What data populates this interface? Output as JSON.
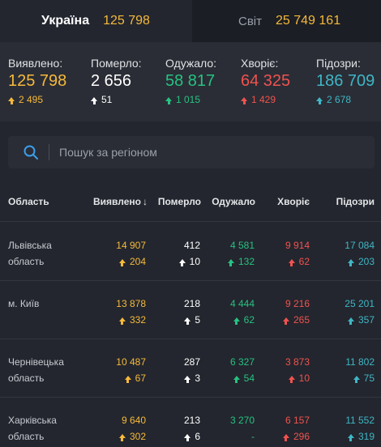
{
  "tabs": {
    "ukraine": {
      "label": "Україна",
      "count": "125 798"
    },
    "world": {
      "label": "Світ",
      "count": "25 749 161"
    }
  },
  "summary": {
    "confirmed": {
      "label": "Виявлено:",
      "value": "125 798",
      "delta": "2 495"
    },
    "deaths": {
      "label": "Померло:",
      "value": "2 656",
      "delta": "51"
    },
    "recovered": {
      "label": "Одужало:",
      "value": "58 817",
      "delta": "1 015"
    },
    "sick": {
      "label": "Хворіє:",
      "value": "64 325",
      "delta": "1 429"
    },
    "suspected": {
      "label": "Підозри:",
      "value": "186 709",
      "delta": "2 678"
    }
  },
  "search": {
    "placeholder": "Пошук за регіоном"
  },
  "table": {
    "headers": {
      "region": "Область",
      "confirmed": "Виявлено",
      "deaths": "Померло",
      "recovered": "Одужало",
      "sick": "Хворіє",
      "suspected": "Підозри"
    },
    "rows": [
      {
        "region": "Львівська область",
        "confirmed": "14 907",
        "confirmed_delta": "204",
        "deaths": "412",
        "deaths_delta": "10",
        "recovered": "4 581",
        "recovered_delta": "132",
        "sick": "9 914",
        "sick_delta": "62",
        "suspected": "17 084",
        "suspected_delta": "203"
      },
      {
        "region": "м. Київ",
        "confirmed": "13 878",
        "confirmed_delta": "332",
        "deaths": "218",
        "deaths_delta": "5",
        "recovered": "4 444",
        "recovered_delta": "62",
        "sick": "9 216",
        "sick_delta": "265",
        "suspected": "25 201",
        "suspected_delta": "357"
      },
      {
        "region": "Чернівецька область",
        "confirmed": "10 487",
        "confirmed_delta": "67",
        "deaths": "287",
        "deaths_delta": "3",
        "recovered": "6 327",
        "recovered_delta": "54",
        "sick": "3 873",
        "sick_delta": "10",
        "suspected": "11 802",
        "suspected_delta": "75"
      },
      {
        "region": "Харківська область",
        "confirmed": "9 640",
        "confirmed_delta": "302",
        "deaths": "213",
        "deaths_delta": "6",
        "recovered": "3 270",
        "recovered_delta": "-",
        "sick": "6 157",
        "sick_delta": "296",
        "suspected": "11 552",
        "suspected_delta": "319"
      }
    ]
  },
  "colors": {
    "confirmed": "#f6b93b",
    "deaths": "#ffffff",
    "recovered": "#26c281",
    "sick": "#f0524f",
    "suspected": "#3fb6c6"
  },
  "icons": {
    "search": "search-icon",
    "up_arrow": "arrow-up-icon",
    "sort": "sort-down-arrow-icon"
  }
}
